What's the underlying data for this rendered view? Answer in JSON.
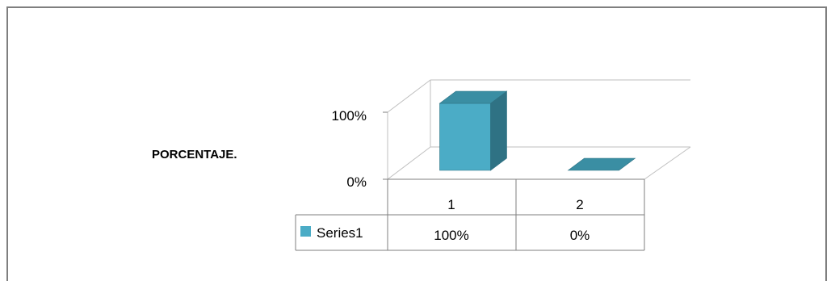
{
  "chart_data": {
    "type": "bar",
    "view": "3d-column",
    "ylabel": "PORCENTAJE.",
    "y_ticks": [
      "100%",
      "0%"
    ],
    "ylim": [
      0,
      100
    ],
    "categories": [
      "1",
      "2"
    ],
    "series": [
      {
        "name": "Series1",
        "values": [
          100,
          0
        ],
        "value_labels": [
          "100%",
          "0%"
        ],
        "color": "#4bacc6"
      }
    ],
    "data_table": true,
    "legend_key_in_table": true,
    "grid": true
  },
  "colors": {
    "bar_front": "#4bacc6",
    "bar_side": "#2f7284",
    "bar_top": "#3a8ea3",
    "frame": "#7f7f7f",
    "gridline": "#bfbfbf"
  }
}
